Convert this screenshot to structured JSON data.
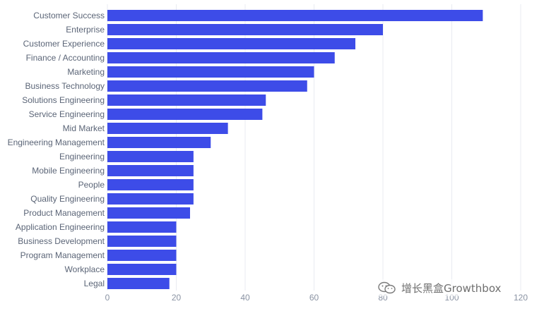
{
  "chart_data": {
    "type": "bar",
    "orientation": "horizontal",
    "categories": [
      "Customer Success",
      "Enterprise",
      "Customer Experience",
      "Finance / Accounting",
      "Marketing",
      "Business Technology",
      "Solutions Engineering",
      "Service Engineering",
      "Mid Market",
      "Engineering Management",
      "Engineering",
      "Mobile Engineering",
      "People",
      "Quality Engineering",
      "Product Management",
      "Application Engineering",
      "Business Development",
      "Program Management",
      "Workplace",
      "Legal"
    ],
    "values": [
      109,
      80,
      72,
      66,
      60,
      58,
      46,
      45,
      35,
      30,
      25,
      25,
      25,
      25,
      24,
      20,
      20,
      20,
      20,
      18
    ],
    "xlim": [
      0,
      120
    ],
    "xticks": [
      0,
      20,
      40,
      60,
      80,
      100,
      120
    ],
    "grid": true,
    "bar_color": "#3d4ce8",
    "grid_color": "#e8ebf1"
  },
  "watermark": {
    "text": "增长黑盒Growthbox",
    "icon": "wechat-icon"
  }
}
